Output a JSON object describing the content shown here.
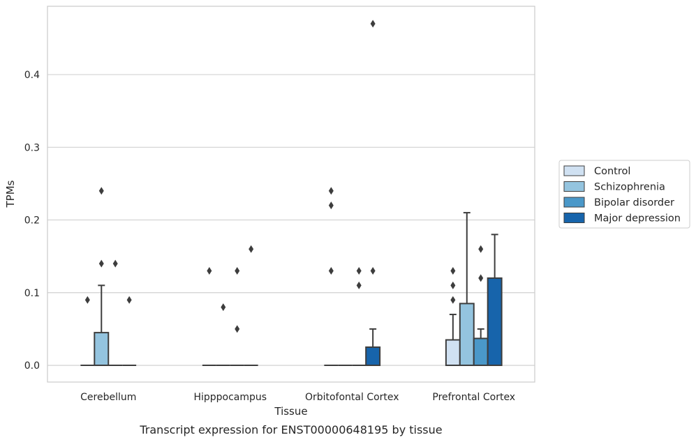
{
  "chart_data": {
    "type": "box",
    "xlabel": "Tissue",
    "ylabel": "TPMs",
    "caption": "Transcript expression for ENST00000648195 by tissue",
    "ylim": [
      -0.023,
      0.494
    ],
    "yticks": [
      0.0,
      0.1,
      0.2,
      0.3,
      0.4
    ],
    "ytick_labels": [
      "0.0",
      "0.1",
      "0.2",
      "0.3",
      "0.4"
    ],
    "grid": "horizontal",
    "legend_position": "right",
    "categories": [
      "Cerebellum",
      "Hipppocampus",
      "Orbitofontal Cortex",
      "Prefrontal Cortex"
    ],
    "series": [
      {
        "name": "Control",
        "color": "#d0e1f2",
        "boxes": [
          {
            "q1": 0,
            "median": 0,
            "q3": 0,
            "whisker_low": 0,
            "whisker_high": 0,
            "outliers": [
              0.09
            ]
          },
          {
            "q1": 0,
            "median": 0,
            "q3": 0,
            "whisker_low": 0,
            "whisker_high": 0,
            "outliers": [
              0.13
            ]
          },
          {
            "q1": 0,
            "median": 0,
            "q3": 0,
            "whisker_low": 0,
            "whisker_high": 0,
            "outliers": [
              0.13,
              0.22,
              0.24
            ]
          },
          {
            "q1": 0,
            "median": 0,
            "q3": 0.035,
            "whisker_low": 0,
            "whisker_high": 0.07,
            "outliers": [
              0.09,
              0.11,
              0.13
            ]
          }
        ]
      },
      {
        "name": "Schizophrenia",
        "color": "#94c4df",
        "boxes": [
          {
            "q1": 0,
            "median": 0,
            "q3": 0.045,
            "whisker_low": 0,
            "whisker_high": 0.11,
            "outliers": [
              0.14,
              0.24
            ]
          },
          {
            "q1": 0,
            "median": 0,
            "q3": 0,
            "whisker_low": 0,
            "whisker_high": 0,
            "outliers": [
              0.08
            ]
          },
          {
            "q1": 0,
            "median": 0,
            "q3": 0,
            "whisker_low": 0,
            "whisker_high": 0,
            "outliers": []
          },
          {
            "q1": 0,
            "median": 0,
            "q3": 0.085,
            "whisker_low": 0,
            "whisker_high": 0.21,
            "outliers": []
          }
        ]
      },
      {
        "name": "Bipolar disorder",
        "color": "#4a98c9",
        "boxes": [
          {
            "q1": 0,
            "median": 0,
            "q3": 0,
            "whisker_low": 0,
            "whisker_high": 0,
            "outliers": [
              0.14
            ]
          },
          {
            "q1": 0,
            "median": 0,
            "q3": 0,
            "whisker_low": 0,
            "whisker_high": 0,
            "outliers": [
              0.05,
              0.13
            ]
          },
          {
            "q1": 0,
            "median": 0,
            "q3": 0,
            "whisker_low": 0,
            "whisker_high": 0,
            "outliers": [
              0.11,
              0.13
            ]
          },
          {
            "q1": 0,
            "median": 0,
            "q3": 0.037,
            "whisker_low": 0,
            "whisker_high": 0.05,
            "outliers": [
              0.12,
              0.16
            ]
          }
        ]
      },
      {
        "name": "Major depression",
        "color": "#1764ab",
        "boxes": [
          {
            "q1": 0,
            "median": 0,
            "q3": 0,
            "whisker_low": 0,
            "whisker_high": 0,
            "outliers": [
              0.09
            ]
          },
          {
            "q1": 0,
            "median": 0,
            "q3": 0,
            "whisker_low": 0,
            "whisker_high": 0,
            "outliers": [
              0.16
            ]
          },
          {
            "q1": 0,
            "median": 0,
            "q3": 0.025,
            "whisker_low": 0,
            "whisker_high": 0.05,
            "outliers": [
              0.13,
              0.47
            ]
          },
          {
            "q1": 0,
            "median": 0,
            "q3": 0.12,
            "whisker_low": 0,
            "whisker_high": 0.18,
            "outliers": []
          }
        ]
      }
    ]
  }
}
